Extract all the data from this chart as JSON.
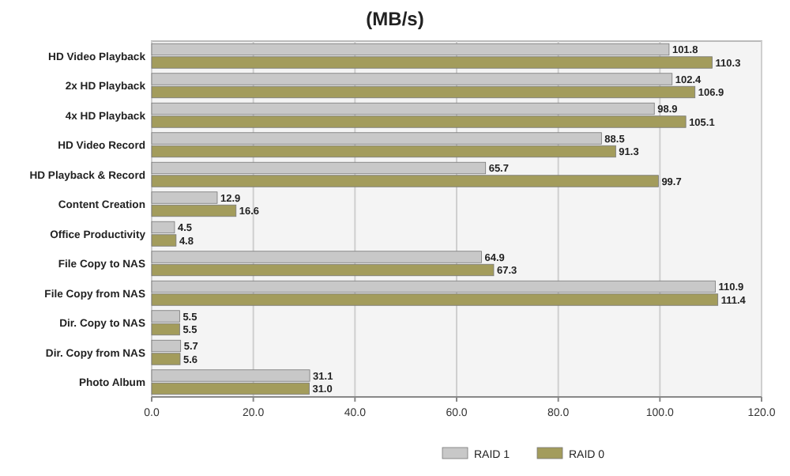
{
  "chart_data": {
    "type": "bar",
    "orientation": "horizontal",
    "title": "(MB/s)",
    "categories": [
      "HD Video Playback",
      "2x HD Playback",
      "4x HD Playback",
      "HD Video Record",
      "HD Playback & Record",
      "Content Creation",
      "Office Productivity",
      "File Copy to NAS",
      "File Copy from NAS",
      "Dir. Copy to NAS",
      "Dir. Copy from NAS",
      "Photo Album"
    ],
    "series": [
      {
        "name": "RAID 1",
        "color": "#c8c8c8",
        "values": [
          101.8,
          102.4,
          98.9,
          88.5,
          65.7,
          12.9,
          4.5,
          64.9,
          110.9,
          5.5,
          5.7,
          31.1
        ],
        "value_labels": [
          "101.8",
          "102.4",
          "98.9",
          "88.5",
          "65.7",
          "12.9",
          "4.5",
          "64.9",
          "110.9",
          "5.5",
          "5.7",
          "31.1"
        ]
      },
      {
        "name": "RAID 0",
        "color": "#a39c5c",
        "values": [
          110.3,
          106.9,
          105.1,
          91.3,
          99.7,
          16.6,
          4.8,
          67.3,
          111.4,
          5.5,
          5.6,
          31.0
        ],
        "value_labels": [
          "110.3",
          "106.9",
          "105.1",
          "91.3",
          "99.7",
          "16.6",
          "4.8",
          "67.3",
          "111.4",
          "5.5",
          "5.6",
          "31.0"
        ]
      }
    ],
    "xlim": [
      0,
      120
    ],
    "xticks": [
      {
        "value": 0,
        "label": "0.0"
      },
      {
        "value": 20,
        "label": "20.0"
      },
      {
        "value": 40,
        "label": "40.0"
      },
      {
        "value": 60,
        "label": "60.0"
      },
      {
        "value": 80,
        "label": "80.0"
      },
      {
        "value": 100,
        "label": "100.0"
      },
      {
        "value": 120,
        "label": "120.0"
      }
    ],
    "grid": "x",
    "legend": "bottom"
  }
}
